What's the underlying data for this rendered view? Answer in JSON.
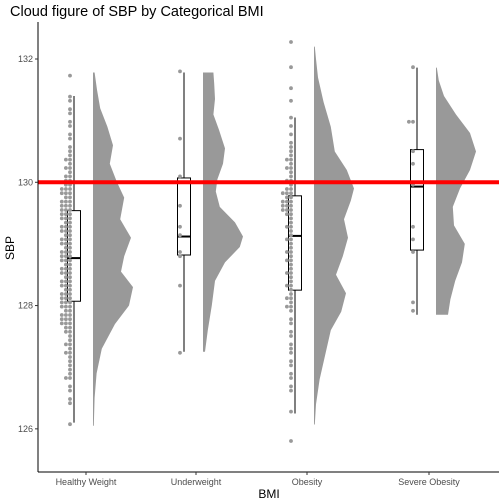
{
  "chart_data": {
    "type": "raincloud",
    "title": "Cloud figure of SBP by Categorical BMI",
    "xlabel": "BMI",
    "ylabel": "SBP",
    "ylim": [
      125.3,
      132.6
    ],
    "yticks": [
      126,
      128,
      130,
      132
    ],
    "categories": [
      "Healthy Weight",
      "Underweight",
      "Obesity",
      "Severe Obesity"
    ],
    "reference_line": {
      "y": 130,
      "color": "#ff0000"
    },
    "colors": {
      "cloud": "#999999",
      "points": "#999999",
      "box_stroke": "#000000",
      "axis": "#000000"
    },
    "grid": false,
    "legend": "none",
    "groups": [
      {
        "category": "Healthy Weight",
        "box": {
          "min": 126.1,
          "q1": 128.07,
          "median": 128.77,
          "q3": 129.54,
          "max": 131.4
        },
        "range": [
          126.05,
          131.78
        ],
        "density": [
          [
            126.05,
            0.02
          ],
          [
            126.5,
            0.04
          ],
          [
            126.9,
            0.09
          ],
          [
            127.3,
            0.22
          ],
          [
            127.7,
            0.55
          ],
          [
            128.0,
            0.9
          ],
          [
            128.3,
            1.0
          ],
          [
            128.55,
            0.7
          ],
          [
            128.8,
            0.78
          ],
          [
            129.1,
            0.95
          ],
          [
            129.4,
            0.68
          ],
          [
            129.75,
            0.78
          ],
          [
            130.0,
            0.6
          ],
          [
            130.3,
            0.42
          ],
          [
            130.6,
            0.5
          ],
          [
            130.9,
            0.36
          ],
          [
            131.2,
            0.18
          ],
          [
            131.5,
            0.1
          ],
          [
            131.78,
            0.04
          ]
        ],
        "points": [
          131.75,
          131.4,
          131.35,
          131.2,
          131.1,
          131.0,
          130.9,
          130.8,
          130.7,
          130.6,
          130.5,
          130.45,
          130.4,
          130.35,
          130.3,
          130.25,
          130.2,
          130.15,
          130.12,
          130.08,
          130.05,
          130.02,
          129.98,
          129.95,
          129.92,
          129.9,
          129.88,
          129.85,
          129.82,
          129.8,
          129.78,
          129.75,
          129.72,
          129.7,
          129.68,
          129.65,
          129.62,
          129.6,
          129.58,
          129.55,
          129.52,
          129.5,
          129.48,
          129.45,
          129.42,
          129.4,
          129.38,
          129.35,
          129.32,
          129.3,
          129.28,
          129.25,
          129.22,
          129.2,
          129.18,
          129.15,
          129.12,
          129.1,
          129.08,
          129.05,
          129.02,
          129.0,
          128.98,
          128.95,
          128.92,
          128.9,
          128.88,
          128.85,
          128.82,
          128.8,
          128.78,
          128.75,
          128.72,
          128.7,
          128.68,
          128.65,
          128.62,
          128.6,
          128.58,
          128.55,
          128.52,
          128.5,
          128.48,
          128.45,
          128.42,
          128.4,
          128.38,
          128.35,
          128.32,
          128.3,
          128.28,
          128.25,
          128.22,
          128.2,
          128.18,
          128.15,
          128.12,
          128.1,
          128.08,
          128.05,
          128.02,
          128.0,
          127.98,
          127.95,
          127.92,
          127.9,
          127.88,
          127.85,
          127.82,
          127.8,
          127.78,
          127.75,
          127.72,
          127.7,
          127.68,
          127.65,
          127.62,
          127.6,
          127.55,
          127.5,
          127.45,
          127.4,
          127.35,
          127.3,
          127.25,
          127.2,
          127.15,
          127.1,
          127.0,
          126.95,
          126.9,
          126.85,
          126.8,
          126.7,
          126.6,
          126.5,
          126.4,
          126.07
        ]
      },
      {
        "category": "Underweight",
        "box": {
          "min": 127.25,
          "q1": 128.82,
          "median": 129.12,
          "q3": 130.07,
          "max": 131.78
        },
        "range": [
          127.25,
          131.78
        ],
        "density": [
          [
            127.25,
            0.05
          ],
          [
            127.6,
            0.12
          ],
          [
            128.0,
            0.22
          ],
          [
            128.4,
            0.3
          ],
          [
            128.7,
            0.55
          ],
          [
            128.95,
            0.92
          ],
          [
            129.12,
            1.0
          ],
          [
            129.35,
            0.8
          ],
          [
            129.6,
            0.42
          ],
          [
            129.85,
            0.32
          ],
          [
            130.05,
            0.36
          ],
          [
            130.3,
            0.5
          ],
          [
            130.55,
            0.55
          ],
          [
            130.85,
            0.4
          ],
          [
            131.1,
            0.26
          ],
          [
            131.35,
            0.3
          ],
          [
            131.6,
            0.28
          ],
          [
            131.78,
            0.26
          ]
        ],
        "points": [
          131.78,
          130.73,
          130.08,
          129.62,
          129.3,
          129.12,
          128.87,
          128.8,
          128.3,
          127.23
        ]
      },
      {
        "category": "Obesity",
        "box": {
          "min": 126.25,
          "q1": 128.25,
          "median": 129.13,
          "q3": 129.78,
          "max": 131.05
        },
        "range": [
          126.07,
          132.2
        ],
        "density": [
          [
            126.07,
            0.02
          ],
          [
            126.4,
            0.05
          ],
          [
            126.8,
            0.14
          ],
          [
            127.2,
            0.28
          ],
          [
            127.6,
            0.42
          ],
          [
            127.9,
            0.68
          ],
          [
            128.2,
            0.8
          ],
          [
            128.5,
            0.55
          ],
          [
            128.8,
            0.72
          ],
          [
            129.1,
            0.85
          ],
          [
            129.4,
            0.75
          ],
          [
            129.7,
            0.92
          ],
          [
            129.9,
            1.0
          ],
          [
            130.2,
            0.82
          ],
          [
            130.5,
            0.52
          ],
          [
            130.9,
            0.42
          ],
          [
            131.3,
            0.24
          ],
          [
            131.7,
            0.1
          ],
          [
            132.0,
            0.05
          ],
          [
            132.2,
            0.02
          ]
        ],
        "points": [
          132.25,
          131.85,
          131.5,
          131.3,
          131.05,
          130.9,
          130.75,
          130.65,
          130.55,
          130.5,
          130.45,
          130.4,
          130.35,
          130.3,
          130.25,
          130.2,
          130.15,
          130.1,
          130.05,
          130.0,
          129.95,
          129.9,
          129.88,
          129.85,
          129.82,
          129.8,
          129.78,
          129.75,
          129.72,
          129.7,
          129.68,
          129.65,
          129.62,
          129.6,
          129.58,
          129.55,
          129.52,
          129.5,
          129.45,
          129.4,
          129.35,
          129.3,
          129.25,
          129.2,
          129.15,
          129.1,
          129.05,
          129.0,
          128.95,
          128.9,
          128.85,
          128.8,
          128.75,
          128.7,
          128.65,
          128.6,
          128.55,
          128.5,
          128.45,
          128.4,
          128.35,
          128.3,
          128.25,
          128.2,
          128.15,
          128.1,
          128.05,
          128.0,
          127.95,
          127.9,
          127.8,
          127.7,
          127.6,
          127.5,
          127.4,
          127.3,
          127.2,
          127.1,
          127.0,
          126.9,
          126.8,
          126.7,
          126.6,
          126.3,
          125.8
        ]
      },
      {
        "category": "Severe Obesity",
        "box": {
          "min": 127.85,
          "q1": 128.9,
          "median": 129.93,
          "q3": 130.53,
          "max": 131.86
        },
        "range": [
          127.85,
          131.86
        ],
        "density": [
          [
            127.85,
            0.3
          ],
          [
            128.1,
            0.36
          ],
          [
            128.4,
            0.48
          ],
          [
            128.7,
            0.65
          ],
          [
            129.0,
            0.72
          ],
          [
            129.3,
            0.45
          ],
          [
            129.6,
            0.42
          ],
          [
            129.9,
            0.6
          ],
          [
            130.2,
            0.85
          ],
          [
            130.5,
            1.0
          ],
          [
            130.8,
            0.85
          ],
          [
            131.1,
            0.5
          ],
          [
            131.4,
            0.2
          ],
          [
            131.65,
            0.07
          ],
          [
            131.86,
            0.02
          ]
        ],
        "points": [
          131.9,
          131.0,
          130.95,
          130.5,
          130.3,
          129.95,
          129.25,
          129.1,
          128.85,
          128.05,
          127.9
        ]
      }
    ]
  }
}
